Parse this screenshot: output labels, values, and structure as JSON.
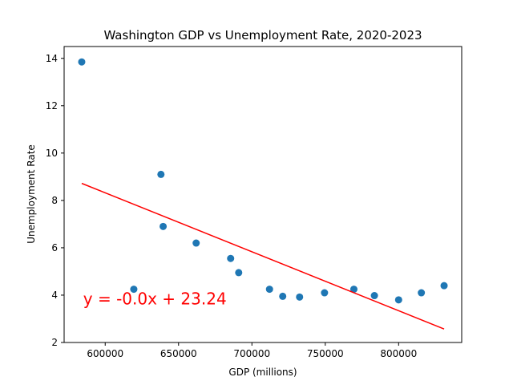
{
  "chart_data": {
    "type": "scatter",
    "title": "Washington GDP vs Unemployment Rate, 2020-2023",
    "xlabel": "GDP (millions)",
    "ylabel": "Unemployment Rate",
    "xlim": [
      572000,
      843000
    ],
    "ylim": [
      2,
      14.5
    ],
    "xticks": [
      600000,
      650000,
      700000,
      750000,
      800000
    ],
    "xtick_labels": [
      "600000",
      "650000",
      "700000",
      "750000",
      "800000"
    ],
    "yticks": [
      2,
      4,
      6,
      8,
      10,
      12,
      14
    ],
    "ytick_labels": [
      "2",
      "4",
      "6",
      "8",
      "10",
      "12",
      "14"
    ],
    "grid": false,
    "series": [
      {
        "type": "scatter",
        "color": "#1f77b4",
        "points": [
          {
            "x": 584000,
            "y": 13.85
          },
          {
            "x": 619500,
            "y": 4.25
          },
          {
            "x": 638000,
            "y": 9.1
          },
          {
            "x": 639500,
            "y": 6.9
          },
          {
            "x": 662000,
            "y": 6.2
          },
          {
            "x": 685500,
            "y": 5.55
          },
          {
            "x": 691000,
            "y": 4.95
          },
          {
            "x": 712000,
            "y": 4.25
          },
          {
            "x": 721000,
            "y": 3.95
          },
          {
            "x": 732500,
            "y": 3.92
          },
          {
            "x": 749500,
            "y": 4.1
          },
          {
            "x": 769500,
            "y": 4.25
          },
          {
            "x": 783500,
            "y": 3.98
          },
          {
            "x": 800000,
            "y": 3.8
          },
          {
            "x": 815500,
            "y": 4.1
          },
          {
            "x": 831000,
            "y": 4.4
          }
        ]
      },
      {
        "type": "line",
        "color": "#ff0000",
        "points": [
          {
            "x": 584000,
            "y": 8.72
          },
          {
            "x": 831000,
            "y": 2.57
          }
        ]
      }
    ],
    "annotation": {
      "text": "y = -0.0x + 23.24",
      "x": 585000,
      "y": 3.85,
      "color": "#ff0000"
    }
  }
}
